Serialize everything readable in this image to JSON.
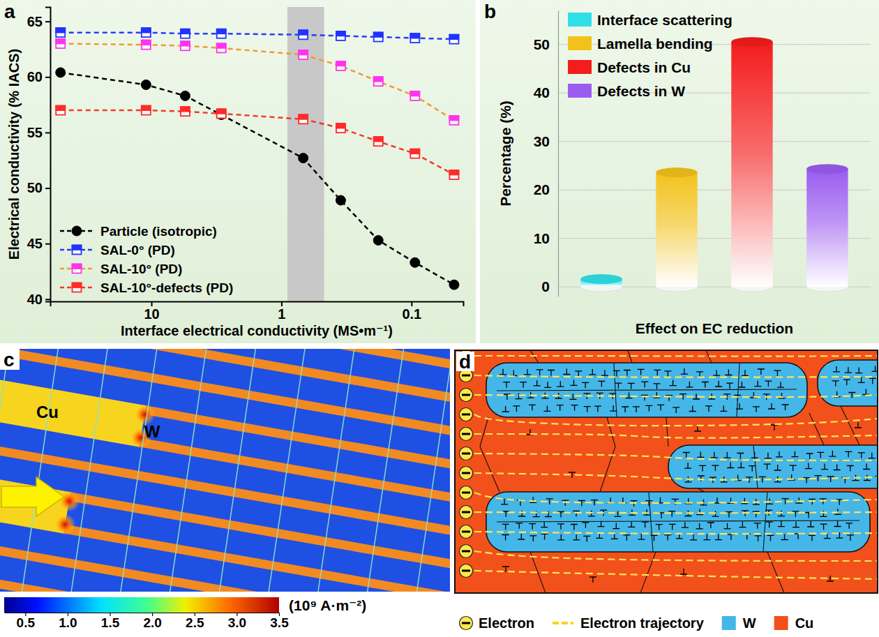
{
  "chart_data": [
    {
      "type": "line",
      "label": "a",
      "x_label": "Interface electrical conductivity (MS•m⁻¹)",
      "y_label": "Electrical conductivity (% IACS)",
      "log": "x",
      "x": [
        50,
        11,
        5.5,
        2.9,
        0.68,
        0.35,
        0.18,
        0.094,
        0.047
      ],
      "xlim": [
        60,
        0.04
      ],
      "xticks": [
        10,
        1,
        0.1
      ],
      "ylim": [
        39.8,
        66.3
      ],
      "yticks": [
        40,
        45,
        50,
        55,
        60,
        65
      ],
      "highlight_x": [
        0.9,
        0.47
      ],
      "legend": "lower left",
      "series": [
        {
          "name": "Particle (isotropic)",
          "color": "#000000",
          "marker": "circle",
          "line_style": "dashed",
          "values": [
            60.4,
            59.3,
            58.3,
            56.6,
            52.7,
            48.9,
            45.3,
            43.3,
            41.3
          ]
        },
        {
          "name": "SAL-0° (PD)",
          "color": "#2a3cf5",
          "marker": "half-square",
          "line_style": "dashed",
          "values": [
            64.0,
            64.0,
            63.9,
            63.9,
            63.8,
            63.7,
            63.6,
            63.5,
            63.4
          ]
        },
        {
          "name": "SAL-10° (PD)",
          "color": "#f39a2e",
          "marker": "half-square",
          "line_style": "dashed",
          "values": [
            63.0,
            62.9,
            62.8,
            62.6,
            62.0,
            61.0,
            59.6,
            58.3,
            56.1
          ]
        },
        {
          "name": "SAL-10°-defects (PD)",
          "color": "#f03a2a",
          "marker": "half-square",
          "line_style": "dashed",
          "values": [
            57.0,
            57.0,
            56.9,
            56.7,
            56.2,
            55.4,
            54.2,
            53.1,
            51.2
          ]
        }
      ]
    },
    {
      "type": "bar",
      "label": "b",
      "x_label": "Effect on EC reduction",
      "y_label": "Percentage (%)",
      "categories": [
        "Interface scattering",
        "Lamella bending",
        "Defects in Cu",
        "Defects in W"
      ],
      "values": [
        1.6,
        23.6,
        50.5,
        24.3
      ],
      "colors": [
        "#2fe0e8",
        "#f2c21b",
        "#f41c1c",
        "#9b5cf0"
      ],
      "ylim": [
        -2,
        57
      ],
      "yticks": [
        0,
        10,
        20,
        30,
        40,
        50
      ],
      "grid": true,
      "legend": "upper left",
      "tick_labels": "y"
    },
    {
      "type": "field",
      "label": "c",
      "annotations": [
        "Cu",
        "W"
      ],
      "colorbar": {
        "range": [
          0.25,
          3.5
        ],
        "ticks": [
          0.5,
          {
            "value": 1.0,
            "label": "1.0"
          },
          1.5,
          {
            "value": 2.0,
            "label": "2.0"
          },
          2.5,
          {
            "value": 3.0,
            "label": "3.0"
          },
          3.5
        ],
        "label": "(10⁹ A·m⁻²)"
      }
    },
    {
      "type": "diagram",
      "label": "d",
      "labels": [
        "Electron",
        "Electron trajectory",
        "W",
        "Cu"
      ]
    }
  ]
}
